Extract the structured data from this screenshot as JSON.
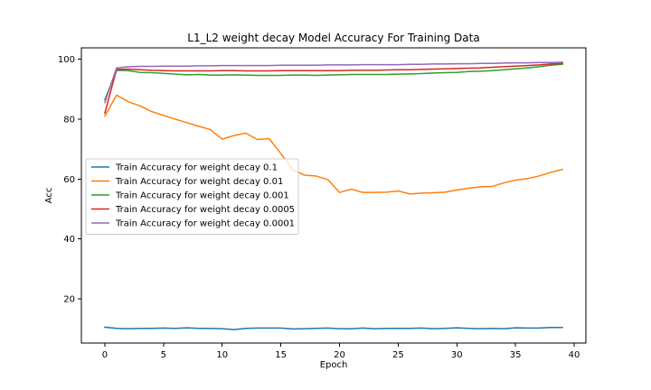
{
  "chart_data": {
    "type": "line",
    "title": "L1_L2 weight decay Model Accuracy For Training Data",
    "xlabel": "Epoch",
    "ylabel": "Acc",
    "xlim": [
      -2,
      41
    ],
    "ylim": [
      5.2,
      103.8
    ],
    "xticks": [
      0,
      5,
      10,
      15,
      20,
      25,
      30,
      35,
      40
    ],
    "yticks": [
      20,
      40,
      60,
      80,
      100
    ],
    "grid": false,
    "legend_position": "center-left",
    "x": [
      0,
      1,
      2,
      3,
      4,
      5,
      6,
      7,
      8,
      9,
      10,
      11,
      12,
      13,
      14,
      15,
      16,
      17,
      18,
      19,
      20,
      21,
      22,
      23,
      24,
      25,
      26,
      27,
      28,
      29,
      30,
      31,
      32,
      33,
      34,
      35,
      36,
      37,
      38,
      39
    ],
    "series": [
      {
        "name": "Train Accuracy for weight decay 0.1",
        "color": "#1f77b4",
        "values": [
          10.5,
          10.1,
          10.0,
          10.1,
          10.1,
          10.2,
          10.1,
          10.3,
          10.1,
          10.1,
          10.0,
          9.7,
          10.1,
          10.2,
          10.2,
          10.2,
          9.9,
          10.0,
          10.1,
          10.2,
          10.0,
          10.0,
          10.2,
          10.0,
          10.1,
          10.1,
          10.1,
          10.2,
          10.0,
          10.1,
          10.3,
          10.1,
          10.0,
          10.1,
          10.0,
          10.3,
          10.2,
          10.2,
          10.4,
          10.4
        ]
      },
      {
        "name": "Train Accuracy for weight decay 0.01",
        "color": "#ff7f0e",
        "values": [
          81.0,
          88.0,
          85.8,
          84.4,
          82.5,
          81.2,
          80.0,
          78.8,
          77.6,
          76.5,
          73.3,
          74.5,
          75.3,
          73.2,
          73.5,
          68.5,
          63.2,
          61.3,
          61.0,
          59.8,
          55.5,
          56.6,
          55.5,
          55.5,
          55.6,
          56.0,
          55.0,
          55.3,
          55.4,
          55.6,
          56.3,
          56.9,
          57.4,
          57.5,
          58.7,
          59.6,
          60.1,
          61.0,
          62.2,
          63.2
        ]
      },
      {
        "name": "Train Accuracy for weight decay 0.001",
        "color": "#2ca02c",
        "values": [
          86.5,
          96.3,
          96.2,
          95.6,
          95.5,
          95.3,
          95.0,
          94.8,
          94.9,
          94.7,
          94.7,
          94.8,
          94.7,
          94.6,
          94.6,
          94.6,
          94.7,
          94.7,
          94.6,
          94.7,
          94.8,
          94.9,
          94.9,
          94.9,
          94.9,
          95.0,
          95.1,
          95.2,
          95.4,
          95.5,
          95.6,
          95.9,
          96.0,
          96.2,
          96.5,
          96.8,
          97.1,
          97.5,
          98.0,
          98.3
        ]
      },
      {
        "name": "Train Accuracy for weight decay 0.0005",
        "color": "#d62728",
        "values": [
          82.0,
          96.6,
          96.7,
          96.5,
          96.3,
          96.2,
          96.1,
          96.1,
          96.1,
          96.1,
          96.2,
          96.2,
          96.1,
          96.1,
          96.1,
          96.2,
          96.2,
          96.2,
          96.2,
          96.2,
          96.2,
          96.3,
          96.3,
          96.3,
          96.4,
          96.5,
          96.5,
          96.6,
          96.7,
          96.8,
          96.9,
          97.0,
          97.1,
          97.3,
          97.5,
          97.7,
          97.9,
          98.1,
          98.4,
          98.6
        ]
      },
      {
        "name": "Train Accuracy for weight decay 0.0001",
        "color": "#9467bd",
        "values": [
          85.5,
          97.1,
          97.5,
          97.6,
          97.6,
          97.7,
          97.7,
          97.7,
          97.8,
          97.8,
          97.9,
          97.9,
          97.9,
          97.9,
          97.9,
          98.0,
          98.0,
          98.0,
          98.0,
          98.1,
          98.1,
          98.1,
          98.2,
          98.2,
          98.2,
          98.2,
          98.3,
          98.3,
          98.4,
          98.4,
          98.5,
          98.5,
          98.6,
          98.6,
          98.7,
          98.8,
          98.8,
          98.9,
          98.9,
          99.0
        ]
      }
    ]
  }
}
